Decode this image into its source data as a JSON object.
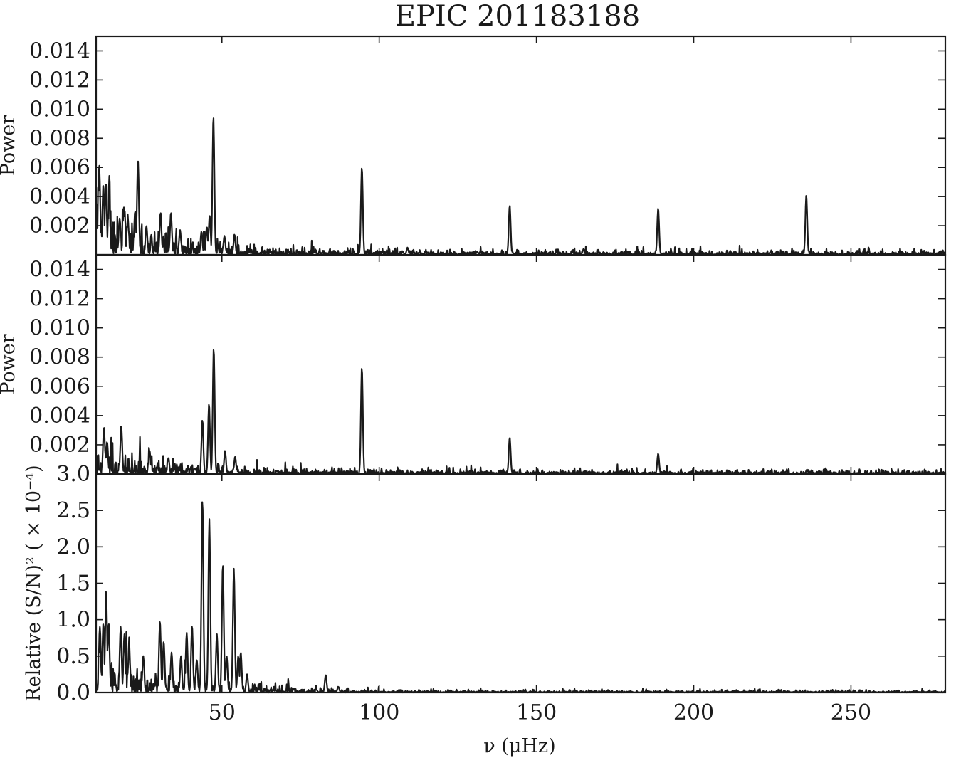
{
  "figure": {
    "title": "EPIC 201183188",
    "xlabel": "ν (μHz)",
    "ink_color": "#1a1a1a",
    "background": "#ffffff"
  },
  "chart_data": [
    {
      "type": "line",
      "panel": "top",
      "ylabel": "Power",
      "xlim": [
        10,
        280
      ],
      "ylim": [
        0,
        0.015
      ],
      "yticks": [
        0.002,
        0.004,
        0.006,
        0.008,
        0.01,
        0.012,
        0.014
      ],
      "ytick_labels": [
        "0.002",
        "0.004",
        "0.006",
        "0.008",
        "0.010",
        "0.012",
        "0.014"
      ],
      "xticks": [
        50,
        100,
        150,
        200,
        250
      ],
      "show_xtick_labels": false,
      "noise_floor": 0.00015,
      "low_freq_excess": {
        "amplitude": 0.0018,
        "center": 10,
        "width": 22
      },
      "peaks": [
        {
          "x": 11,
          "y": 0.0062
        },
        {
          "x": 12.3,
          "y": 0.0048
        },
        {
          "x": 13.1,
          "y": 0.0049
        },
        {
          "x": 14.2,
          "y": 0.0032
        },
        {
          "x": 17.5,
          "y": 0.0025
        },
        {
          "x": 18.8,
          "y": 0.0033
        },
        {
          "x": 20.1,
          "y": 0.0024
        },
        {
          "x": 22.4,
          "y": 0.003
        },
        {
          "x": 23.3,
          "y": 0.0065
        },
        {
          "x": 26.0,
          "y": 0.002
        },
        {
          "x": 30.5,
          "y": 0.0029
        },
        {
          "x": 33.8,
          "y": 0.0029
        },
        {
          "x": 36.7,
          "y": 0.0017
        },
        {
          "x": 43.5,
          "y": 0.0016
        },
        {
          "x": 45.2,
          "y": 0.0019
        },
        {
          "x": 46.1,
          "y": 0.0027
        },
        {
          "x": 47.3,
          "y": 0.0095
        },
        {
          "x": 50.8,
          "y": 0.0013
        },
        {
          "x": 54.0,
          "y": 0.0014
        },
        {
          "x": 94.5,
          "y": 0.006
        },
        {
          "x": 141.5,
          "y": 0.0034
        },
        {
          "x": 188.7,
          "y": 0.0032
        },
        {
          "x": 235.8,
          "y": 0.0041
        },
        {
          "x": 109.0,
          "y": 0.0005
        },
        {
          "x": 165.0,
          "y": 0.0004
        }
      ]
    },
    {
      "type": "line",
      "panel": "middle",
      "ylabel": "Power",
      "xlim": [
        10,
        280
      ],
      "ylim": [
        0,
        0.015
      ],
      "yticks": [
        0.002,
        0.004,
        0.006,
        0.008,
        0.01,
        0.012,
        0.014
      ],
      "ytick_labels": [
        "0.002",
        "0.004",
        "0.006",
        "0.008",
        "0.010",
        "0.012",
        "0.014"
      ],
      "xticks": [
        50,
        100,
        150,
        200,
        250
      ],
      "show_xtick_labels": false,
      "noise_floor": 0.00012,
      "low_freq_excess": {
        "amplitude": 0.0007,
        "center": 10,
        "width": 25
      },
      "peaks": [
        {
          "x": 12.5,
          "y": 0.0032
        },
        {
          "x": 13.5,
          "y": 0.0022
        },
        {
          "x": 18.0,
          "y": 0.0033
        },
        {
          "x": 27.0,
          "y": 0.0016
        },
        {
          "x": 33.0,
          "y": 0.0011
        },
        {
          "x": 43.8,
          "y": 0.0037
        },
        {
          "x": 45.9,
          "y": 0.0048
        },
        {
          "x": 47.4,
          "y": 0.0086
        },
        {
          "x": 51.0,
          "y": 0.0016
        },
        {
          "x": 54.2,
          "y": 0.0012
        },
        {
          "x": 94.5,
          "y": 0.0073
        },
        {
          "x": 141.5,
          "y": 0.0025
        },
        {
          "x": 188.7,
          "y": 0.0014
        },
        {
          "x": 236.0,
          "y": 0.0003
        }
      ]
    },
    {
      "type": "line",
      "panel": "bottom",
      "ylabel": "Relative (S/N)² ( × 10⁻⁴)",
      "xlim": [
        10,
        280
      ],
      "ylim": [
        0,
        3.0
      ],
      "yticks": [
        0.0,
        0.5,
        1.0,
        1.5,
        2.0,
        2.5,
        3.0
      ],
      "ytick_labels": [
        "0.0",
        "0.5",
        "1.0",
        "1.5",
        "2.0",
        "2.5",
        "3.0"
      ],
      "xticks": [
        50,
        100,
        150,
        200,
        250
      ],
      "xtick_labels": [
        "50",
        "100",
        "150",
        "200",
        "250"
      ],
      "show_xtick_labels": true,
      "noise_floor": 0.012,
      "low_freq_excess": {
        "amplitude": 0.25,
        "center": 10,
        "width": 28
      },
      "peaks": [
        {
          "x": 11.2,
          "y": 0.9
        },
        {
          "x": 12.3,
          "y": 0.95
        },
        {
          "x": 13.2,
          "y": 1.4
        },
        {
          "x": 14.0,
          "y": 0.95
        },
        {
          "x": 17.8,
          "y": 0.9
        },
        {
          "x": 19.0,
          "y": 0.8
        },
        {
          "x": 20.5,
          "y": 0.65
        },
        {
          "x": 25.0,
          "y": 0.5
        },
        {
          "x": 30.3,
          "y": 0.98
        },
        {
          "x": 31.5,
          "y": 0.7
        },
        {
          "x": 34.0,
          "y": 0.55
        },
        {
          "x": 37.0,
          "y": 0.5
        },
        {
          "x": 38.8,
          "y": 0.82
        },
        {
          "x": 40.5,
          "y": 0.92
        },
        {
          "x": 42.0,
          "y": 0.45
        },
        {
          "x": 43.8,
          "y": 2.65
        },
        {
          "x": 46.0,
          "y": 2.38
        },
        {
          "x": 48.4,
          "y": 0.8
        },
        {
          "x": 50.3,
          "y": 1.76
        },
        {
          "x": 51.5,
          "y": 0.5
        },
        {
          "x": 53.8,
          "y": 1.7
        },
        {
          "x": 55.2,
          "y": 0.5
        },
        {
          "x": 56.0,
          "y": 0.55
        },
        {
          "x": 58.0,
          "y": 0.25
        },
        {
          "x": 83.0,
          "y": 0.24
        },
        {
          "x": 87.0,
          "y": 0.08
        }
      ]
    }
  ]
}
